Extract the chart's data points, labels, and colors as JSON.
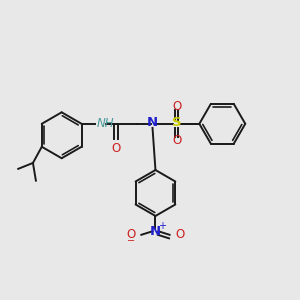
{
  "background_color": "#e8e8e8",
  "bond_color": "#1a1a1a",
  "N_color": "#2020cc",
  "O_color": "#cc2020",
  "S_color": "#cccc00",
  "NH_color": "#4a9a9a",
  "figsize": [
    3.0,
    3.0
  ],
  "dpi": 100,
  "xlim": [
    0,
    10
  ],
  "ylim": [
    0,
    10
  ],
  "lw": 1.4,
  "fs": 8.5
}
